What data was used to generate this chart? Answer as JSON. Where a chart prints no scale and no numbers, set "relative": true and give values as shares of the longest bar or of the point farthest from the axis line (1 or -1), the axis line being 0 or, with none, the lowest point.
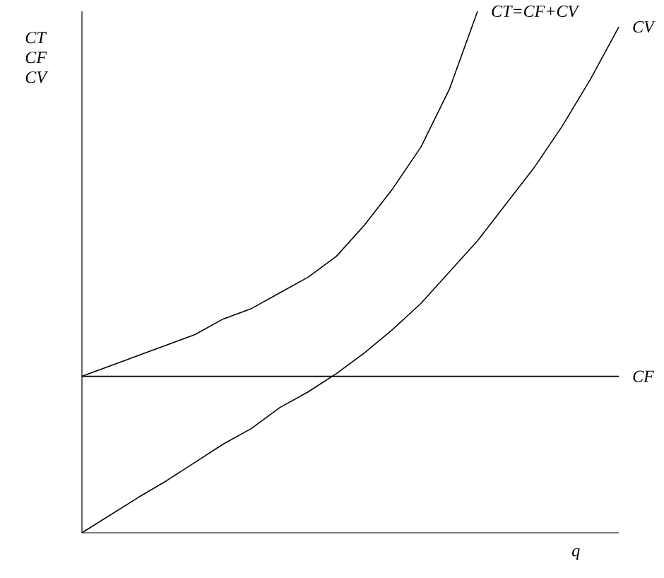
{
  "chart_data": {
    "type": "line",
    "relative": true,
    "xlabel": "q",
    "ylabel": "CT CF CV",
    "categories": [
      null,
      null,
      null,
      null,
      null,
      null,
      null,
      null,
      null,
      null,
      null,
      null,
      null,
      null,
      null,
      null,
      null,
      null,
      null,
      null
    ],
    "series": [
      {
        "name": "CT=CF+CV",
        "color": "#000000",
        "values": [
          0.3,
          0.32,
          0.34,
          0.36,
          0.38,
          0.41,
          0.43,
          0.46,
          0.49,
          0.53,
          0.59,
          0.66,
          0.74,
          0.85,
          1.0,
          null,
          null,
          null,
          null,
          null
        ]
      },
      {
        "name": "CV",
        "color": "#000000",
        "values": [
          0,
          0.034,
          0.068,
          0.1,
          0.135,
          0.17,
          0.2,
          0.24,
          0.27,
          0.305,
          0.345,
          0.39,
          0.44,
          0.5,
          0.56,
          0.63,
          0.7,
          0.78,
          0.87,
          0.97
        ]
      },
      {
        "name": "CF",
        "color": "#000000",
        "values": [
          0.3,
          0.3,
          0.3,
          0.3,
          0.3,
          0.3,
          0.3,
          0.3,
          0.3,
          0.3,
          0.3,
          0.3,
          0.3,
          0.3,
          0.3,
          0.3,
          0.3,
          0.3,
          0.3,
          0.3
        ]
      }
    ]
  }
}
